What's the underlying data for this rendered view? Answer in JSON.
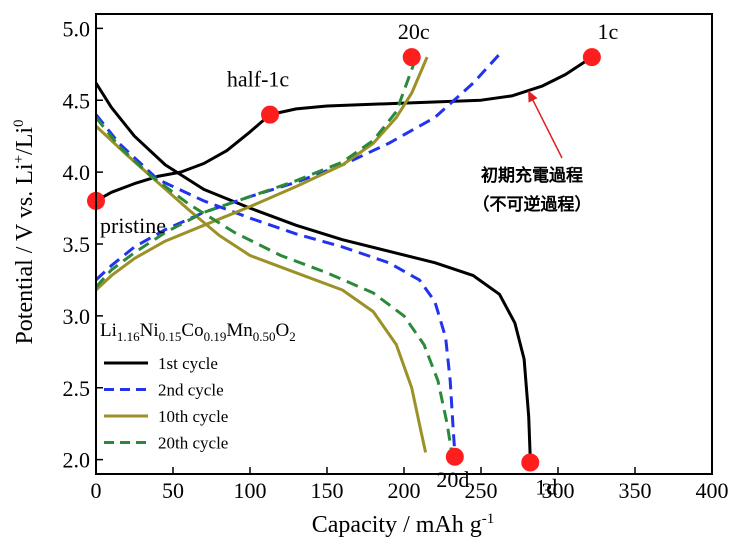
{
  "chart_data": {
    "type": "line",
    "xlabel": "Capacity / mAh g-1",
    "ylabel": "Potential / V vs. Li+/Li0",
    "xlim": [
      0,
      400
    ],
    "ylim": [
      1.9,
      5.1
    ],
    "xticks": [
      0,
      50,
      100,
      150,
      200,
      250,
      300,
      350,
      400
    ],
    "yticks": [
      2.0,
      2.5,
      3.0,
      3.5,
      4.0,
      4.5,
      5.0
    ],
    "xtick_labels": [
      "0",
      "50",
      "100",
      "150",
      "200",
      "250",
      "300",
      "350",
      "400"
    ],
    "ytick_labels": [
      "2.0",
      "2.5",
      "3.0",
      "3.5",
      "4.0",
      "4.5",
      "5.0"
    ],
    "legend_position": "bottom-left",
    "material": "Li1.16Ni0.15Co0.19Mn0.50O2",
    "series": [
      {
        "name": "1st cycle",
        "color": "#000000",
        "style": "solid",
        "charge": [
          [
            0,
            3.8
          ],
          [
            10,
            3.86
          ],
          [
            25,
            3.92
          ],
          [
            40,
            3.97
          ],
          [
            55,
            4.0
          ],
          [
            70,
            4.06
          ],
          [
            85,
            4.15
          ],
          [
            100,
            4.28
          ],
          [
            113,
            4.4
          ],
          [
            130,
            4.44
          ],
          [
            150,
            4.46
          ],
          [
            200,
            4.48
          ],
          [
            250,
            4.5
          ],
          [
            270,
            4.53
          ],
          [
            290,
            4.6
          ],
          [
            305,
            4.68
          ],
          [
            322,
            4.8
          ]
        ],
        "discharge": [
          [
            0,
            4.62
          ],
          [
            10,
            4.45
          ],
          [
            25,
            4.25
          ],
          [
            45,
            4.05
          ],
          [
            70,
            3.88
          ],
          [
            100,
            3.75
          ],
          [
            130,
            3.63
          ],
          [
            160,
            3.53
          ],
          [
            190,
            3.45
          ],
          [
            220,
            3.37
          ],
          [
            245,
            3.28
          ],
          [
            262,
            3.15
          ],
          [
            272,
            2.95
          ],
          [
            278,
            2.7
          ],
          [
            281,
            2.3
          ],
          [
            282,
            2.0
          ]
        ]
      },
      {
        "name": "2nd cycle",
        "color": "#2233ee",
        "style": "dash",
        "charge": [
          [
            0,
            3.25
          ],
          [
            10,
            3.35
          ],
          [
            25,
            3.48
          ],
          [
            45,
            3.6
          ],
          [
            70,
            3.72
          ],
          [
            100,
            3.83
          ],
          [
            130,
            3.93
          ],
          [
            160,
            4.05
          ],
          [
            190,
            4.2
          ],
          [
            220,
            4.38
          ],
          [
            245,
            4.62
          ],
          [
            262,
            4.82
          ]
        ],
        "discharge": [
          [
            0,
            4.4
          ],
          [
            15,
            4.2
          ],
          [
            40,
            3.95
          ],
          [
            70,
            3.8
          ],
          [
            100,
            3.68
          ],
          [
            130,
            3.57
          ],
          [
            160,
            3.48
          ],
          [
            190,
            3.37
          ],
          [
            210,
            3.25
          ],
          [
            220,
            3.1
          ],
          [
            227,
            2.85
          ],
          [
            230,
            2.55
          ],
          [
            232,
            2.2
          ],
          [
            233,
            2.05
          ]
        ]
      },
      {
        "name": "10th cycle",
        "color": "#9b9126",
        "style": "solid",
        "charge": [
          [
            0,
            3.18
          ],
          [
            10,
            3.28
          ],
          [
            25,
            3.4
          ],
          [
            45,
            3.52
          ],
          [
            70,
            3.63
          ],
          [
            100,
            3.76
          ],
          [
            130,
            3.9
          ],
          [
            160,
            4.05
          ],
          [
            180,
            4.2
          ],
          [
            195,
            4.38
          ],
          [
            205,
            4.55
          ],
          [
            215,
            4.8
          ]
        ],
        "discharge": [
          [
            0,
            4.32
          ],
          [
            20,
            4.12
          ],
          [
            40,
            3.93
          ],
          [
            60,
            3.74
          ],
          [
            80,
            3.56
          ],
          [
            100,
            3.42
          ],
          [
            130,
            3.3
          ],
          [
            160,
            3.18
          ],
          [
            180,
            3.03
          ],
          [
            195,
            2.8
          ],
          [
            205,
            2.5
          ],
          [
            211,
            2.2
          ],
          [
            214,
            2.05
          ]
        ]
      },
      {
        "name": "20th cycle",
        "color": "#2a8a3a",
        "style": "dash",
        "charge": [
          [
            0,
            3.2
          ],
          [
            10,
            3.32
          ],
          [
            25,
            3.44
          ],
          [
            45,
            3.58
          ],
          [
            70,
            3.72
          ],
          [
            100,
            3.83
          ],
          [
            130,
            3.94
          ],
          [
            160,
            4.07
          ],
          [
            180,
            4.22
          ],
          [
            195,
            4.42
          ],
          [
            208,
            4.8
          ]
        ],
        "discharge": [
          [
            0,
            4.38
          ],
          [
            15,
            4.18
          ],
          [
            35,
            3.98
          ],
          [
            60,
            3.78
          ],
          [
            90,
            3.58
          ],
          [
            120,
            3.42
          ],
          [
            150,
            3.3
          ],
          [
            180,
            3.16
          ],
          [
            200,
            3.0
          ],
          [
            213,
            2.8
          ],
          [
            222,
            2.55
          ],
          [
            228,
            2.25
          ],
          [
            231,
            2.05
          ]
        ]
      }
    ],
    "markers": [
      {
        "label": "pristine",
        "x": 0,
        "y": 3.8
      },
      {
        "label": "half-1c",
        "x": 113,
        "y": 4.4
      },
      {
        "label": "20c",
        "x": 205,
        "y": 4.8
      },
      {
        "label": "1c",
        "x": 322,
        "y": 4.8
      },
      {
        "label": "20d",
        "x": 233,
        "y": 2.02
      },
      {
        "label": "1d",
        "x": 282,
        "y": 1.98
      }
    ],
    "annotation": {
      "line1": "初期充電過程",
      "line2": "（不可逆過程）",
      "arrow_target": [
        280,
        4.58
      ]
    }
  }
}
